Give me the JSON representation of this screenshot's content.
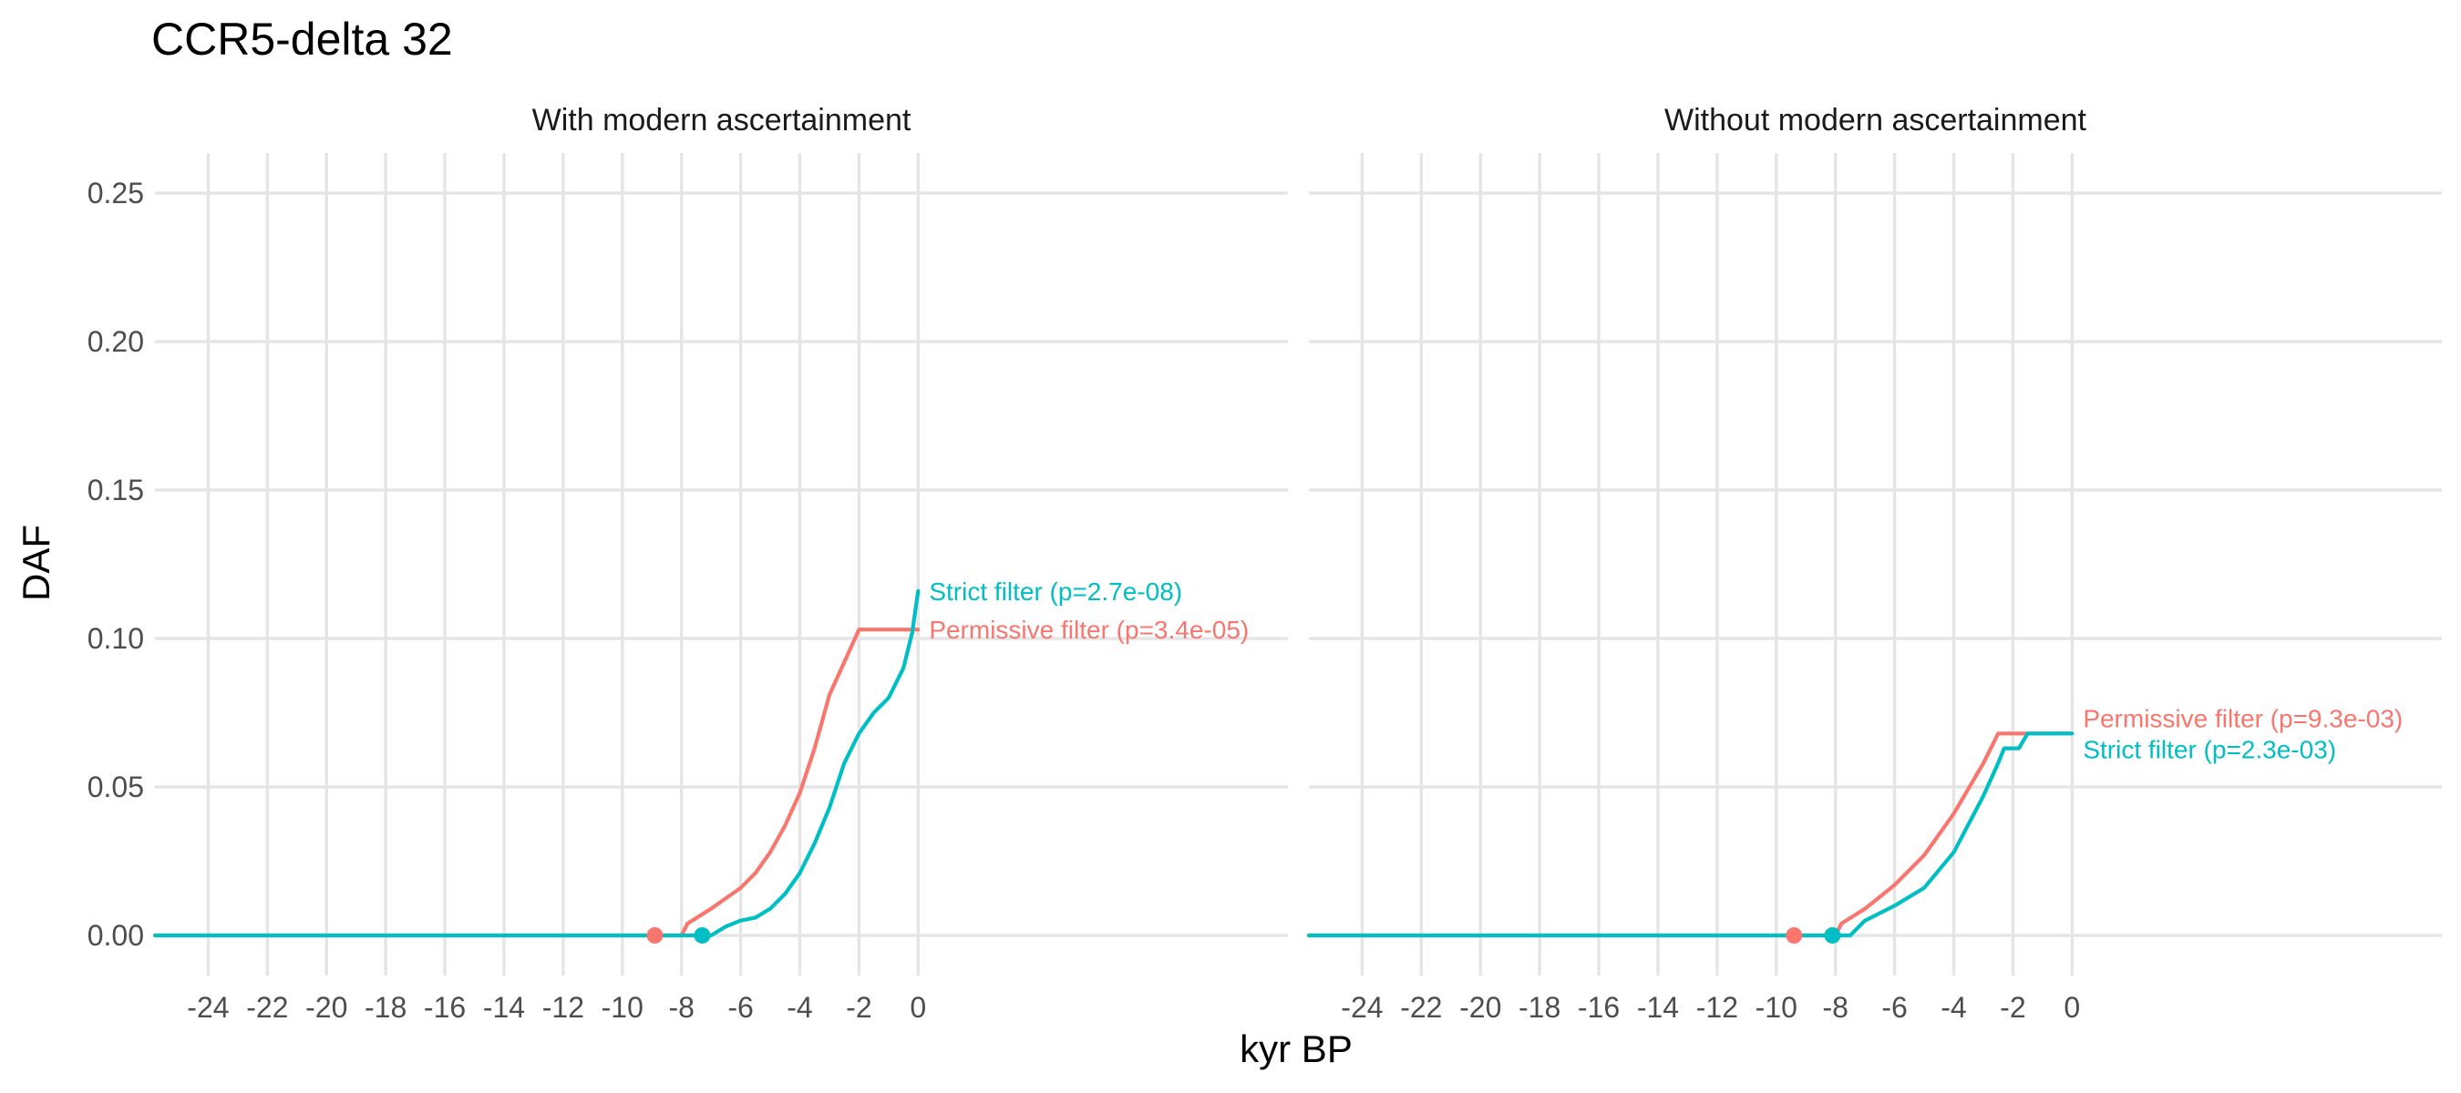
{
  "chart_data": {
    "type": "line",
    "title": "CCR5-delta 32",
    "xlabel": "kyr BP",
    "ylabel": "DAF",
    "x_ticks": [
      -24,
      -22,
      -20,
      -18,
      -16,
      -14,
      -12,
      -10,
      -8,
      -6,
      -4,
      -2,
      0
    ],
    "x_tick_labels": [
      "-24",
      "-22",
      "-20",
      "-18",
      "-16",
      "-14",
      "-12",
      "-10",
      "-8",
      "-6",
      "-4",
      "-2",
      "0"
    ],
    "y_ticks": [
      0,
      0.05,
      0.1,
      0.15,
      0.2,
      0.25
    ],
    "y_tick_labels": [
      "0.00",
      "0.05",
      "0.10",
      "0.15",
      "0.20",
      "0.25"
    ],
    "xlim": [
      -25.8,
      12.5
    ],
    "ylim": [
      -0.0135,
      0.2635
    ],
    "colors": {
      "Permissive": "#F8766D",
      "Strict": "#00BFC4"
    },
    "panels": [
      {
        "title": "With modern ascertainment",
        "series": [
          {
            "name": "Permissive",
            "label": "Permissive filter (p=3.4e-05)",
            "onset": -8.9,
            "points": [
              [
                -25.8,
                0
              ],
              [
                -8.0,
                0
              ],
              [
                -7.8,
                0.004
              ],
              [
                -7.0,
                0.009
              ],
              [
                -6.0,
                0.016
              ],
              [
                -5.5,
                0.021
              ],
              [
                -5.0,
                0.028
              ],
              [
                -4.5,
                0.037
              ],
              [
                -4.0,
                0.048
              ],
              [
                -3.5,
                0.063
              ],
              [
                -3.0,
                0.081
              ],
              [
                -2.5,
                0.092
              ],
              [
                -2.0,
                0.103
              ],
              [
                0,
                0.103
              ]
            ]
          },
          {
            "name": "Strict",
            "label": "Strict filter (p=2.7e-08)",
            "onset": -7.3,
            "points": [
              [
                -25.8,
                0
              ],
              [
                -7.0,
                0
              ],
              [
                -6.5,
                0.003
              ],
              [
                -6.0,
                0.005
              ],
              [
                -5.5,
                0.006
              ],
              [
                -5.0,
                0.009
              ],
              [
                -4.5,
                0.014
              ],
              [
                -4.0,
                0.021
              ],
              [
                -3.5,
                0.031
              ],
              [
                -3.0,
                0.043
              ],
              [
                -2.5,
                0.058
              ],
              [
                -2.0,
                0.068
              ],
              [
                -1.5,
                0.075
              ],
              [
                -1.0,
                0.08
              ],
              [
                -0.5,
                0.09
              ],
              [
                -0.2,
                0.102
              ],
              [
                0,
                0.116
              ]
            ]
          }
        ]
      },
      {
        "title": "Without modern ascertainment",
        "series": [
          {
            "name": "Permissive",
            "label": "Permissive filter (p=9.3e-03)",
            "onset": -9.4,
            "points": [
              [
                -25.8,
                0
              ],
              [
                -8.0,
                0
              ],
              [
                -7.8,
                0.004
              ],
              [
                -7.0,
                0.009
              ],
              [
                -6.0,
                0.017
              ],
              [
                -5.0,
                0.027
              ],
              [
                -4.0,
                0.041
              ],
              [
                -3.0,
                0.058
              ],
              [
                -2.5,
                0.068
              ],
              [
                0,
                0.068
              ]
            ]
          },
          {
            "name": "Strict",
            "label": "Strict filter (p=2.3e-03)",
            "onset": -8.1,
            "points": [
              [
                -25.8,
                0
              ],
              [
                -7.5,
                0
              ],
              [
                -7.0,
                0.005
              ],
              [
                -6.0,
                0.01
              ],
              [
                -5.0,
                0.016
              ],
              [
                -4.0,
                0.028
              ],
              [
                -3.0,
                0.047
              ],
              [
                -2.5,
                0.058
              ],
              [
                -2.3,
                0.063
              ],
              [
                -1.8,
                0.063
              ],
              [
                -1.5,
                0.068
              ],
              [
                0,
                0.068
              ]
            ]
          }
        ]
      }
    ]
  }
}
